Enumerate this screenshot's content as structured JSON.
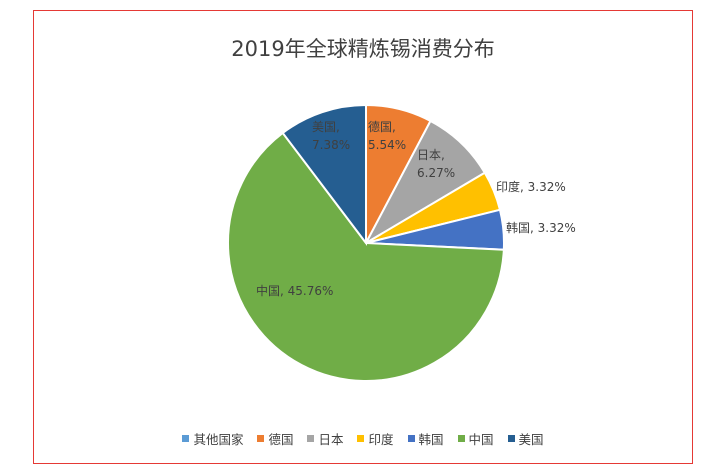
{
  "chart_data": {
    "type": "pie",
    "title": "2019年全球精炼锡消费分布",
    "slices": [
      {
        "name": "其他国家",
        "value": 0.0,
        "label": "",
        "color": "#5B9BD5"
      },
      {
        "name": "德国",
        "value": 5.54,
        "label": "德国, 5.54%",
        "color": "#ED7D31"
      },
      {
        "name": "日本",
        "value": 6.27,
        "label": "日本, 6.27%",
        "color": "#A5A5A5"
      },
      {
        "name": "印度",
        "value": 3.32,
        "label": "印度, 3.32%",
        "color": "#FFC000"
      },
      {
        "name": "韩国",
        "value": 3.32,
        "label": "韩国, 3.32%",
        "color": "#4472C4"
      },
      {
        "name": "中国",
        "value": 45.76,
        "label": "中国, 45.76%",
        "color": "#70AD47"
      },
      {
        "name": "美国",
        "value": 7.38,
        "label": "美国, 7.38%",
        "color": "#255E91"
      }
    ],
    "legend_position": "bottom"
  }
}
